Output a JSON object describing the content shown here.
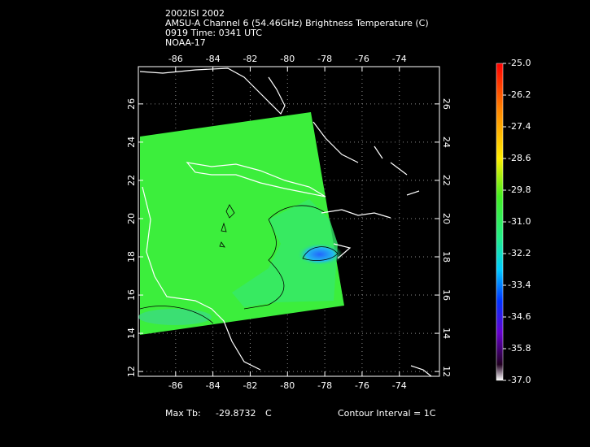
{
  "header": {
    "lines": [
      "2002ISI 2002",
      "AMSU-A Channel 6 (54.46GHz) Brightness Temperature (C)",
      "0919 Time: 0341 UTC",
      "NOAA-17"
    ]
  },
  "map": {
    "xlim": [
      -88,
      -71.85
    ],
    "ylim": [
      11.75,
      27.95
    ],
    "xticks": [
      -86,
      -84,
      -82,
      -80,
      -78,
      -76,
      -74
    ],
    "yticks": [
      12,
      14,
      16,
      18,
      20,
      22,
      24,
      26
    ],
    "grid": true
  },
  "colorbar": {
    "clim": [
      -37,
      -25
    ],
    "ticks": [
      {
        "value": -25,
        "label": "-25.0"
      },
      -26.2,
      -27.4,
      -28.6,
      -29.8,
      {
        "value": -31,
        "label": "-31.0"
      },
      -32.2,
      -33.4,
      -34.6,
      -35.8,
      {
        "value": -37,
        "label": "-37.0"
      }
    ]
  },
  "footer": {
    "max_label": "Max Tb:",
    "max_value": -29.8732,
    "max_unit": "C",
    "contour": "Contour Interval = 1C"
  }
}
